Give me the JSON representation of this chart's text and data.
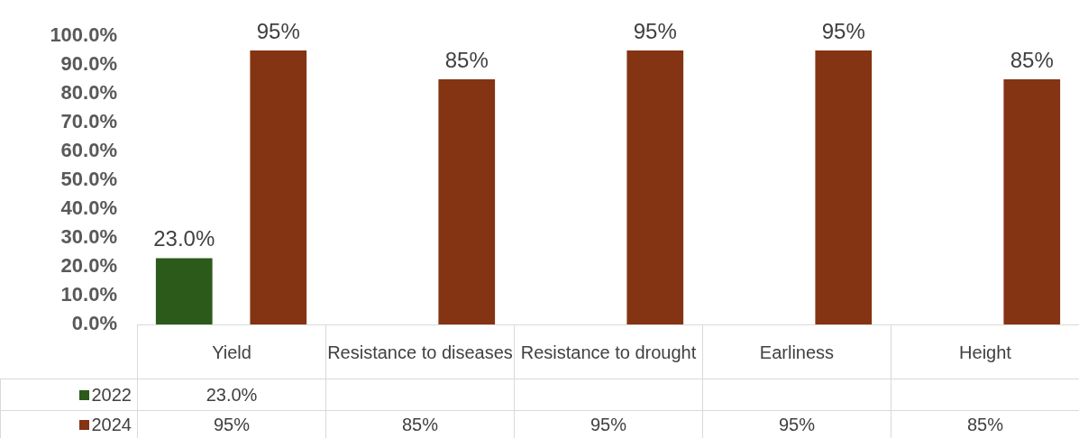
{
  "chart_data": {
    "type": "bar",
    "categories": [
      "Yield",
      "Resistance to diseases",
      "Resistance to drought",
      "Earliness",
      "Height"
    ],
    "series": [
      {
        "name": "2022",
        "color": "#2b5a1a",
        "values": [
          23,
          null,
          null,
          null,
          null
        ],
        "value_labels": [
          "23.0%",
          null,
          null,
          null,
          null
        ]
      },
      {
        "name": "2024",
        "color": "#843412",
        "values": [
          95,
          85,
          95,
          95,
          85
        ],
        "value_labels": [
          "95%",
          "85%",
          "95%",
          "95%",
          "85%"
        ]
      }
    ],
    "ylim": [
      0,
      100
    ],
    "yticks": [
      {
        "value": 0,
        "label": "0.0%"
      },
      {
        "value": 10,
        "label": "10.0%"
      },
      {
        "value": 20,
        "label": "20.0%"
      },
      {
        "value": 30,
        "label": "30.0%"
      },
      {
        "value": 40,
        "label": "40.0%"
      },
      {
        "value": 50,
        "label": "50.0%"
      },
      {
        "value": 60,
        "label": "60.0%"
      },
      {
        "value": 70,
        "label": "70.0%"
      },
      {
        "value": 80,
        "label": "80.0%"
      },
      {
        "value": 90,
        "label": "90.0%"
      },
      {
        "value": 100,
        "label": "100.0%"
      }
    ],
    "grid": false,
    "legend": "bottom"
  }
}
